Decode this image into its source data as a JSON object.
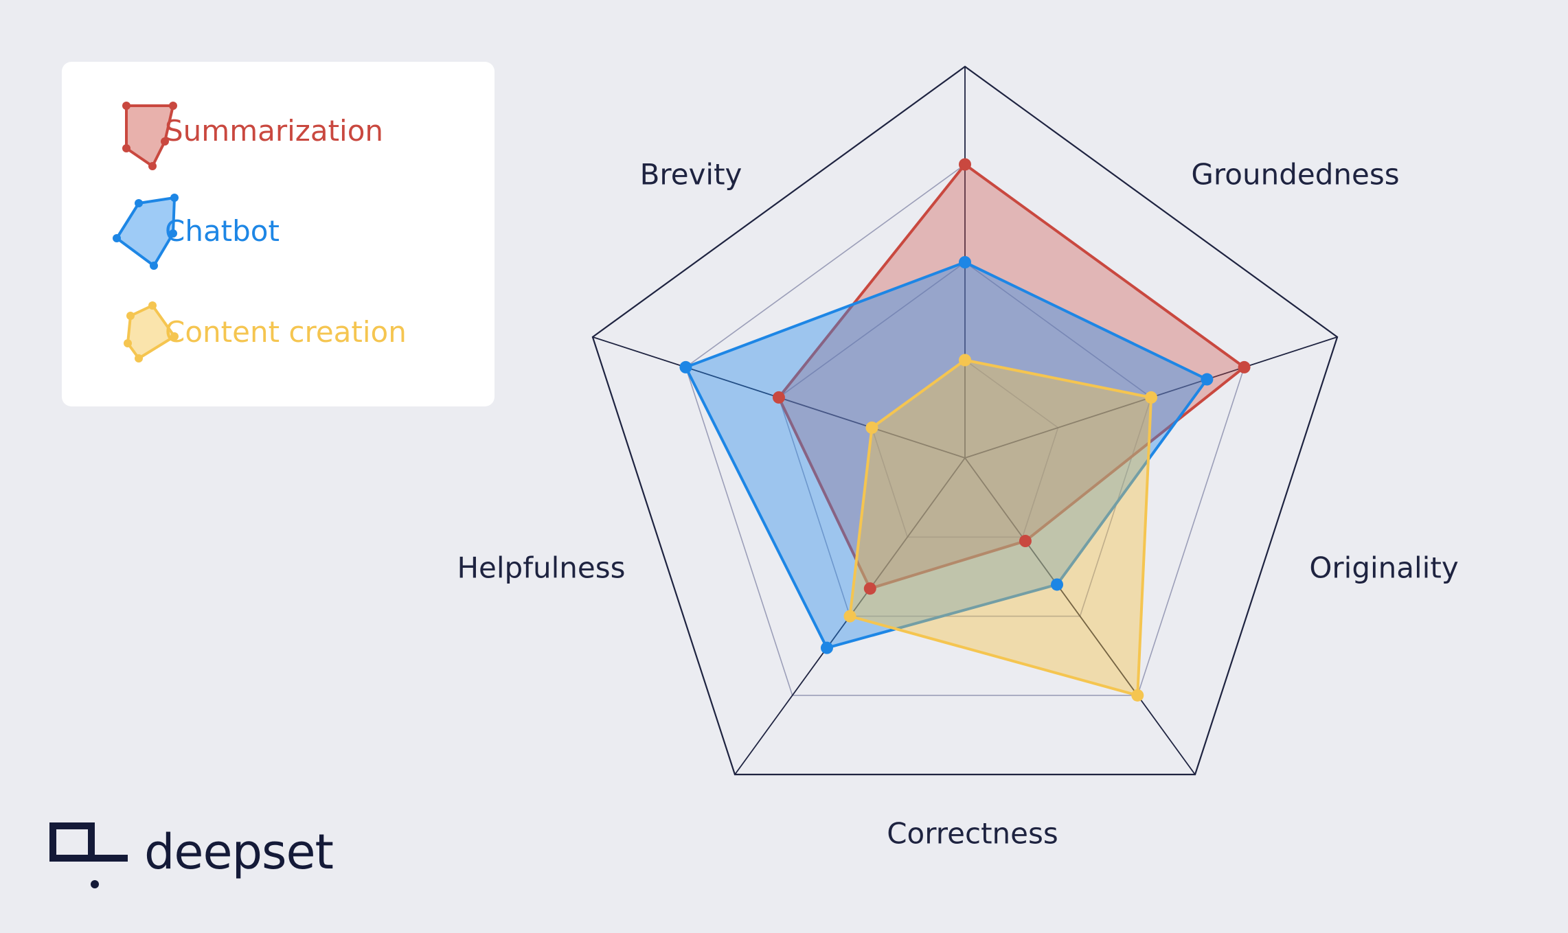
{
  "chart_data": {
    "type": "radar",
    "axes": [
      "Groundedness",
      "Originality",
      "Correctness",
      "Helpfulness",
      "Brevity"
    ],
    "range": [
      0,
      4
    ],
    "rings": 4,
    "series": [
      {
        "name": "Summarization",
        "values": [
          3.0,
          1.05,
          1.65,
          2.0,
          3.0
        ],
        "color": "#c9483f",
        "fill": "rgba(205,82,72,0.35)"
      },
      {
        "name": "Chatbot",
        "values": [
          2.6,
          1.6,
          2.4,
          3.0,
          2.0
        ],
        "color": "#1d86e5",
        "fill": "rgba(40,140,235,0.40)"
      },
      {
        "name": "Content creation",
        "values": [
          2.0,
          3.0,
          2.0,
          1.0,
          1.0
        ],
        "color": "#f5c550",
        "fill": "rgba(245,195,70,0.40)"
      }
    ]
  },
  "legend": {
    "items": [
      {
        "label": "Summarization",
        "color": "#c9483f"
      },
      {
        "label": "Chatbot",
        "color": "#1d86e5"
      },
      {
        "label": "Content creation",
        "color": "#f5c550"
      }
    ]
  },
  "brand": {
    "name": "deepset"
  },
  "colors": {
    "background": "#ebecf1",
    "grid_outer": "#1e2340",
    "grid_inner": "#9b9eb8"
  }
}
